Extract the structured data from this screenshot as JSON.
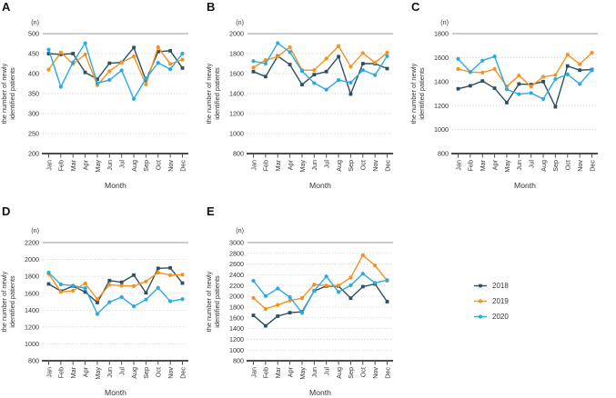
{
  "figure": {
    "unit_label": "(n)",
    "xlabel": "Month",
    "ylabel_line1": "the number of newly",
    "ylabel_line2": "identified patients"
  },
  "months": [
    "Jan",
    "Feb",
    "Mar",
    "Apr",
    "May",
    "Jun",
    "Jul",
    "Aug",
    "Sep",
    "Oct",
    "Nov",
    "Dec"
  ],
  "colors": {
    "2018": "#2E4F5F",
    "2019": "#F5921E",
    "2020": "#29ABE2",
    "grid_dotted": "#C9C9C9",
    "grid_solid": "#9B9B9B",
    "axis": "#4D4D4D",
    "text": "#333333"
  },
  "legend": [
    {
      "label": "2018"
    },
    {
      "label": "2019"
    },
    {
      "label": "2020"
    }
  ],
  "chart_data": [
    {
      "panel": "A",
      "type": "line",
      "title": "",
      "xlabel": "Month",
      "ylabel": "the number of newly identified patients",
      "unit": "(n)",
      "ylim": [
        200,
        500
      ],
      "ytick_step": 50,
      "grid": "horizontal-dotted, solid top rule",
      "legend_position": "outside-right",
      "categories": [
        "Jan",
        "Feb",
        "Mar",
        "Apr",
        "May",
        "Jun",
        "Jul",
        "Aug",
        "Sep",
        "Oct",
        "Nov",
        "Dec"
      ],
      "series": [
        {
          "name": "2018",
          "values": [
            450,
            448,
            450,
            403,
            386,
            426,
            428,
            465,
            383,
            455,
            457,
            414
          ]
        },
        {
          "name": "2019",
          "values": [
            410,
            453,
            424,
            448,
            371,
            406,
            428,
            443,
            373,
            466,
            424,
            435
          ]
        },
        {
          "name": "2020",
          "values": [
            460,
            367,
            428,
            476,
            376,
            384,
            408,
            337,
            388,
            427,
            411,
            450
          ]
        }
      ]
    },
    {
      "panel": "B",
      "type": "line",
      "title": "",
      "xlabel": "Month",
      "ylabel": "the number of newly identified patients",
      "unit": "(n)",
      "ylim": [
        800,
        2000
      ],
      "ytick_step": 200,
      "grid": "horizontal-dotted, solid top rule",
      "legend_position": "outside-right",
      "categories": [
        "Jan",
        "Feb",
        "Mar",
        "Apr",
        "May",
        "Jun",
        "Jul",
        "Aug",
        "Sep",
        "Oct",
        "Nov",
        "Dec"
      ],
      "series": [
        {
          "name": "2018",
          "values": [
            1620,
            1570,
            1775,
            1690,
            1490,
            1590,
            1620,
            1770,
            1395,
            1700,
            1700,
            1650
          ]
        },
        {
          "name": "2019",
          "values": [
            1660,
            1735,
            1770,
            1865,
            1635,
            1635,
            1750,
            1875,
            1670,
            1805,
            1710,
            1810
          ]
        },
        {
          "name": "2020",
          "values": [
            1725,
            1700,
            1905,
            1815,
            1625,
            1505,
            1440,
            1535,
            1510,
            1635,
            1585,
            1775
          ]
        }
      ]
    },
    {
      "panel": "C",
      "type": "line",
      "title": "",
      "xlabel": "Month",
      "ylabel": "the number of newly identified patients",
      "unit": "(n)",
      "ylim": [
        800,
        1800
      ],
      "ytick_step": 200,
      "grid": "horizontal-dotted, solid top rule",
      "legend_position": "outside-right",
      "categories": [
        "Jan",
        "Feb",
        "Mar",
        "Apr",
        "May",
        "Jun",
        "Jul",
        "Aug",
        "Sep",
        "Oct",
        "Nov",
        "Dec"
      ],
      "series": [
        {
          "name": "2018",
          "values": [
            1340,
            1365,
            1405,
            1345,
            1225,
            1380,
            1375,
            1400,
            1190,
            1530,
            1495,
            1500
          ]
        },
        {
          "name": "2019",
          "values": [
            1505,
            1480,
            1475,
            1505,
            1360,
            1450,
            1360,
            1440,
            1455,
            1625,
            1545,
            1640
          ]
        },
        {
          "name": "2020",
          "values": [
            1590,
            1480,
            1575,
            1610,
            1335,
            1295,
            1305,
            1255,
            1420,
            1460,
            1380,
            1495
          ]
        }
      ]
    },
    {
      "panel": "D",
      "type": "line",
      "title": "",
      "xlabel": "Month",
      "ylabel": "the number of newly identified patients",
      "unit": "(n)",
      "ylim": [
        800,
        2200
      ],
      "ytick_step": 200,
      "grid": "horizontal-dotted, solid top rule",
      "legend_position": "outside-right",
      "categories": [
        "Jan",
        "Feb",
        "Mar",
        "Apr",
        "May",
        "Jun",
        "Jul",
        "Aug",
        "Sep",
        "Oct",
        "Nov",
        "Dec"
      ],
      "series": [
        {
          "name": "2018",
          "values": [
            1710,
            1625,
            1685,
            1615,
            1490,
            1750,
            1730,
            1815,
            1605,
            1895,
            1900,
            1720
          ]
        },
        {
          "name": "2019",
          "values": [
            1830,
            1615,
            1630,
            1715,
            1530,
            1700,
            1690,
            1685,
            1740,
            1845,
            1815,
            1820
          ]
        },
        {
          "name": "2020",
          "values": [
            1845,
            1705,
            1690,
            1660,
            1355,
            1495,
            1555,
            1445,
            1525,
            1665,
            1505,
            1530
          ]
        }
      ]
    },
    {
      "panel": "E",
      "type": "line",
      "title": "",
      "xlabel": "Month",
      "ylabel": "the number of newly identified patients",
      "unit": "(n)",
      "ylim": [
        800,
        3000
      ],
      "ytick_step": 200,
      "grid": "horizontal-dotted, solid top rule",
      "legend_position": "outside-right",
      "categories": [
        "Jan",
        "Feb",
        "Mar",
        "Apr",
        "May",
        "Jun",
        "Jul",
        "Aug",
        "Sep",
        "Oct",
        "Nov",
        "Dec"
      ],
      "series": [
        {
          "name": "2018",
          "values": [
            1645,
            1450,
            1630,
            1695,
            1710,
            2100,
            2190,
            2190,
            1965,
            2180,
            2230,
            1900
          ]
        },
        {
          "name": "2019",
          "values": [
            1970,
            1765,
            1840,
            1920,
            1965,
            2220,
            2200,
            2200,
            2350,
            2765,
            2575,
            2290
          ]
        },
        {
          "name": "2020",
          "values": [
            2290,
            2005,
            2145,
            1985,
            1690,
            2105,
            2370,
            2080,
            2205,
            2420,
            2250,
            2300
          ]
        }
      ]
    }
  ]
}
